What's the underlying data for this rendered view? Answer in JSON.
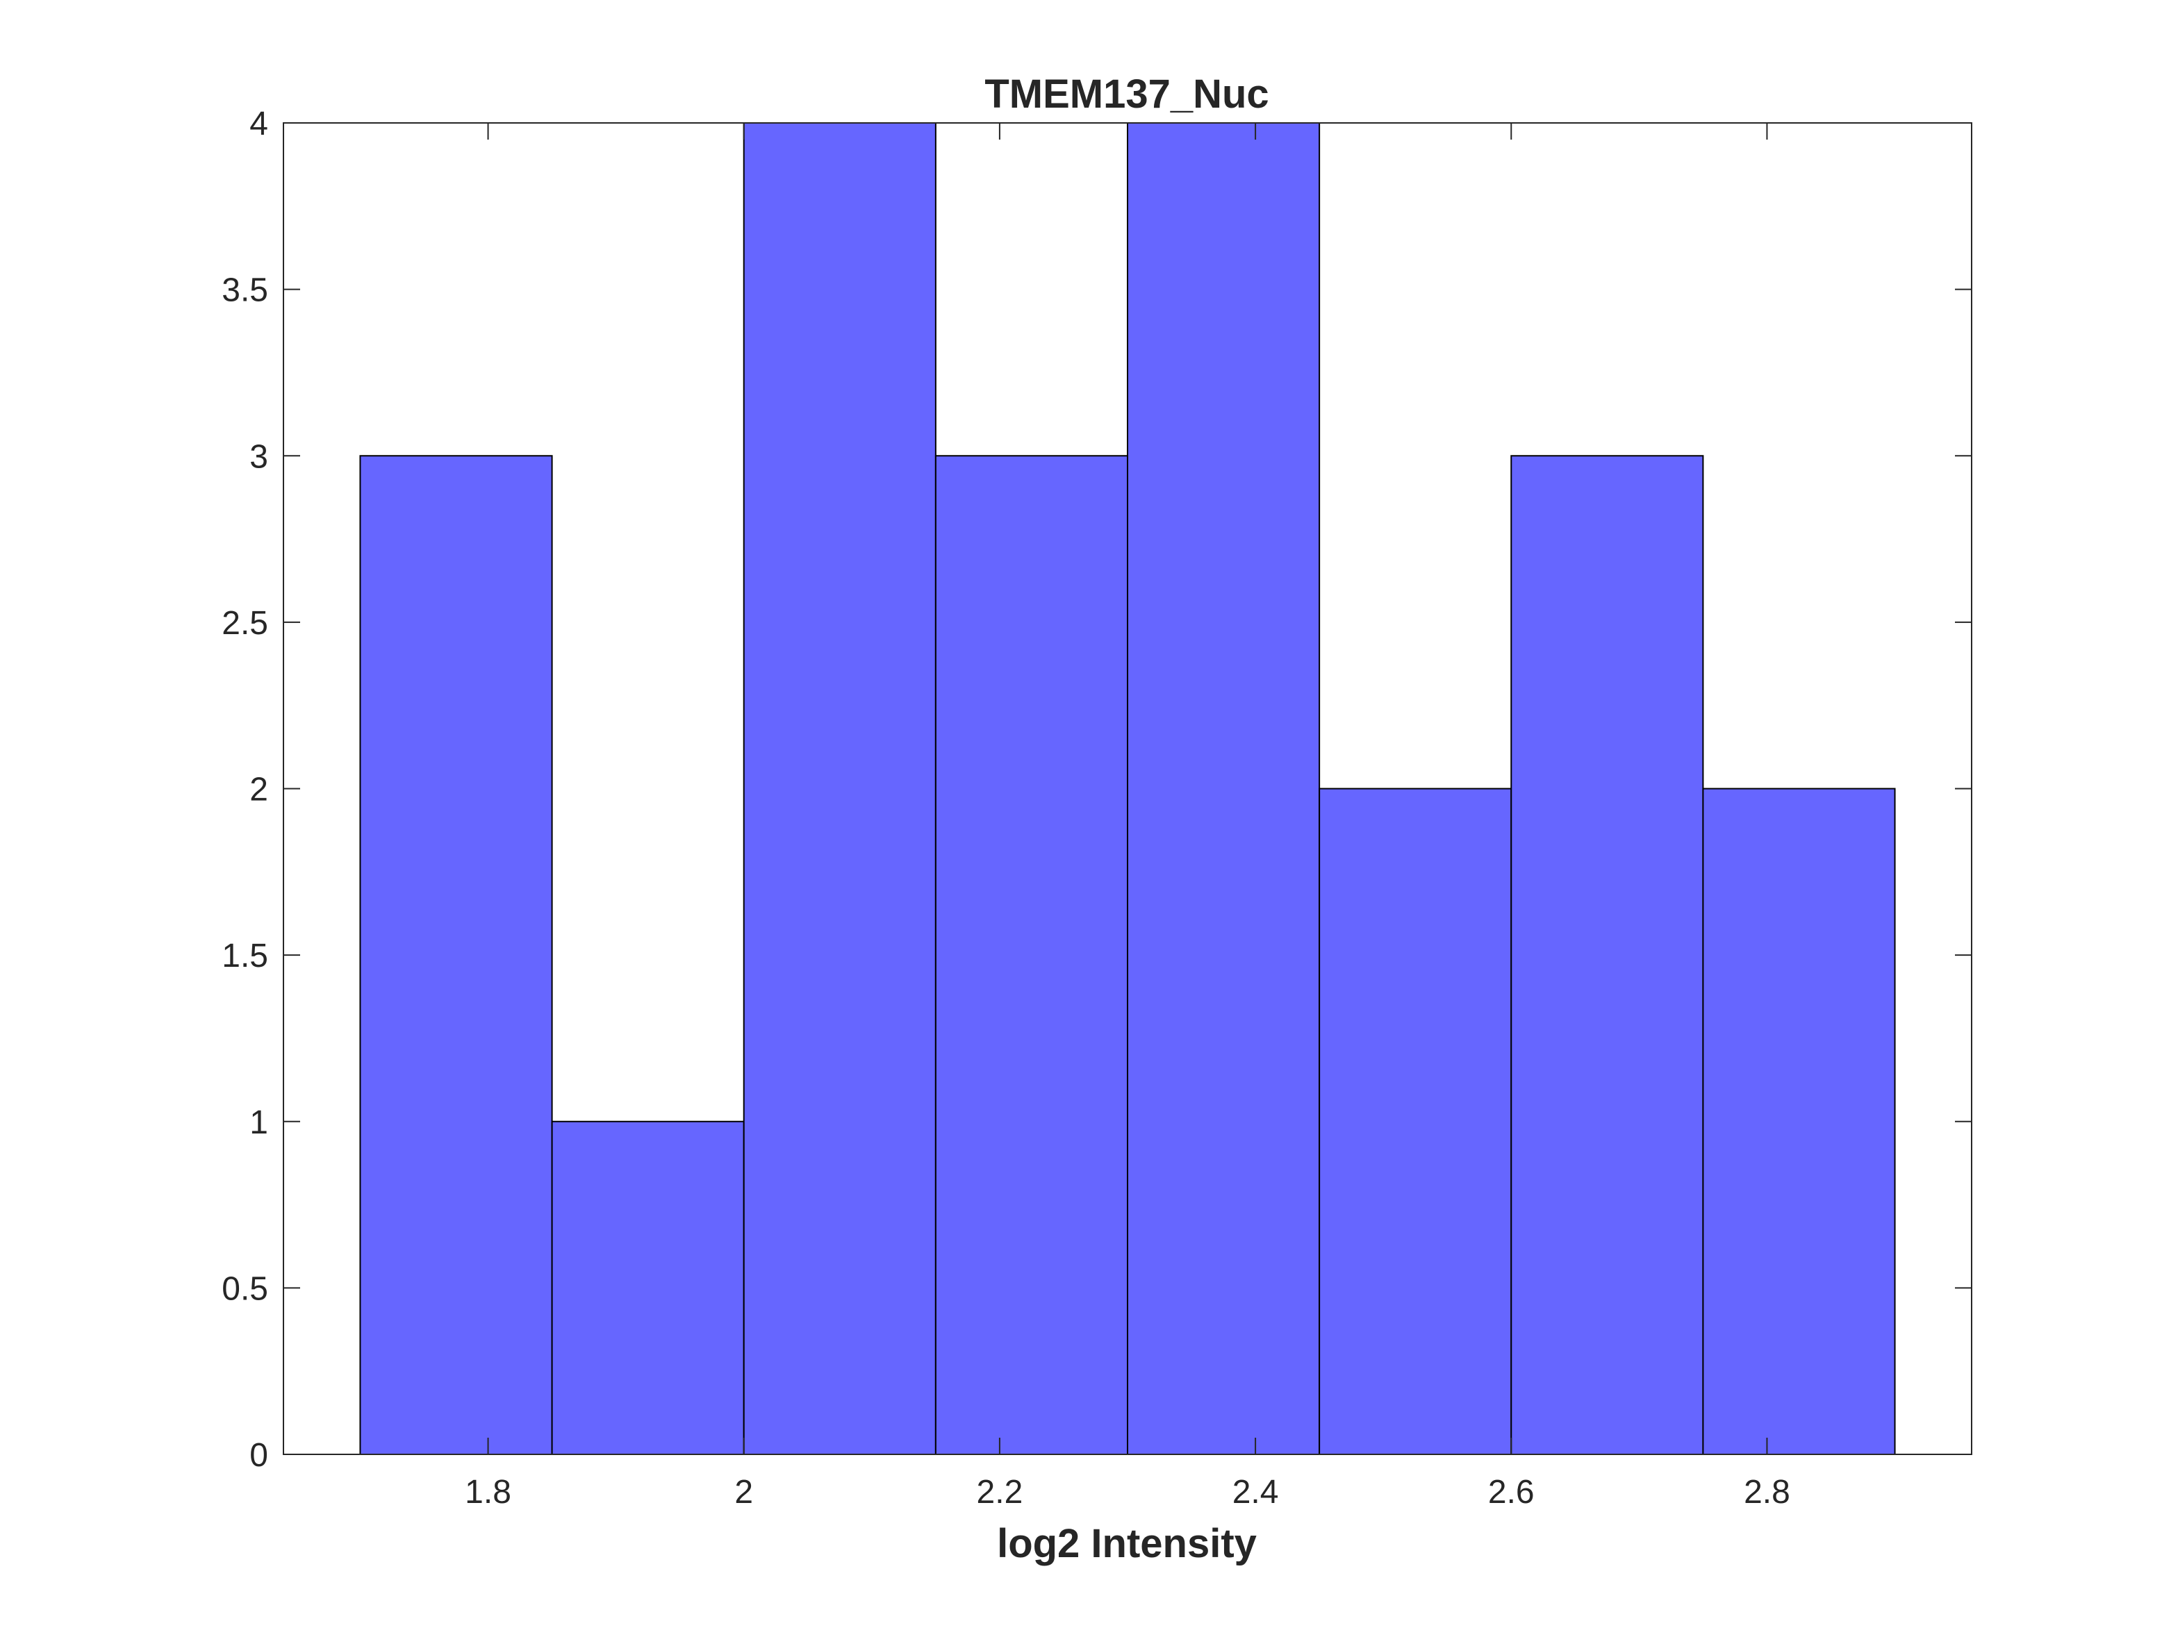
{
  "chart_data": {
    "type": "bar",
    "title": "TMEM137_Nuc",
    "xlabel": "log2 Intensity",
    "ylabel": "",
    "bin_edges": [
      1.7,
      1.85,
      2.0,
      2.15,
      2.3,
      2.45,
      2.6,
      2.75,
      2.9
    ],
    "values": [
      3,
      1,
      4,
      3,
      4,
      2,
      3,
      2
    ],
    "xlim": [
      1.64,
      2.96
    ],
    "ylim": [
      0,
      4
    ],
    "x_ticks": [
      1.8,
      2.0,
      2.2,
      2.4,
      2.6,
      2.8
    ],
    "x_tick_labels": [
      "1.8",
      "2",
      "2.2",
      "2.4",
      "2.6",
      "2.8"
    ],
    "y_ticks": [
      0,
      0.5,
      1,
      1.5,
      2,
      2.5,
      3,
      3.5,
      4
    ],
    "y_tick_labels": [
      "0",
      "0.5",
      "1",
      "1.5",
      "2",
      "2.5",
      "3",
      "3.5",
      "4"
    ],
    "bar_color": "#6666ff",
    "edge_color": "#000000",
    "grid": false,
    "legend": "none"
  }
}
